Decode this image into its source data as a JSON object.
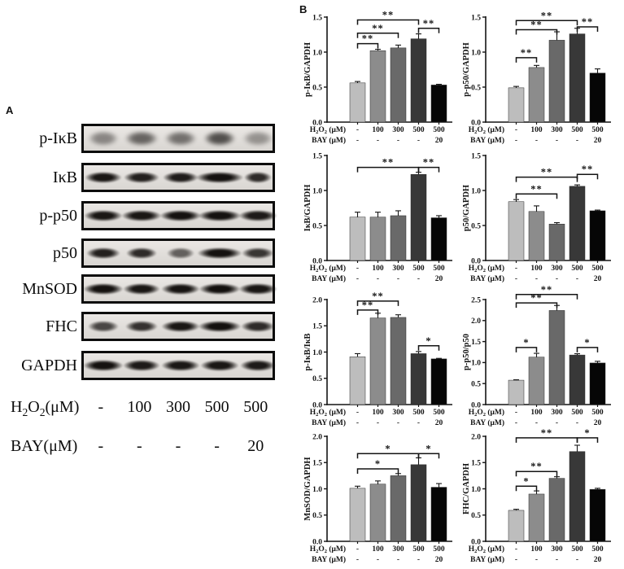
{
  "panel_a": {
    "label": "A",
    "blots": [
      {
        "target": "p-IκB",
        "band_intensities": [
          0.42,
          0.58,
          0.52,
          0.68,
          0.36
        ],
        "band_widths": [
          40,
          44,
          42,
          42,
          40
        ],
        "fuzzy": true
      },
      {
        "target": "IκB",
        "band_intensities": [
          0.95,
          0.9,
          0.92,
          0.97,
          0.85
        ],
        "band_widths": [
          48,
          46,
          46,
          62,
          36
        ],
        "fuzzy": false
      },
      {
        "target": "p-p50",
        "band_intensities": [
          0.95,
          0.95,
          0.97,
          0.97,
          0.93
        ],
        "band_widths": [
          50,
          52,
          54,
          56,
          50
        ],
        "fuzzy": false
      },
      {
        "target": "p50",
        "band_intensities": [
          0.9,
          0.85,
          0.6,
          0.97,
          0.8
        ],
        "band_widths": [
          44,
          40,
          36,
          58,
          42
        ],
        "fuzzy": false
      },
      {
        "target": "MnSOD",
        "band_intensities": [
          0.97,
          0.95,
          0.96,
          0.98,
          0.95
        ],
        "band_widths": [
          52,
          48,
          50,
          54,
          50
        ],
        "fuzzy": false
      },
      {
        "target": "FHC",
        "band_intensities": [
          0.72,
          0.82,
          0.95,
          0.98,
          0.85
        ],
        "band_widths": [
          40,
          42,
          50,
          56,
          44
        ],
        "fuzzy": false
      },
      {
        "target": "GAPDH",
        "band_intensities": [
          0.97,
          0.93,
          0.94,
          0.95,
          0.93
        ],
        "band_widths": [
          52,
          48,
          50,
          50,
          46
        ],
        "fuzzy": false
      }
    ],
    "h2o2_row": {
      "label": "H₂O₂(μM)",
      "values": [
        "-",
        "100",
        "300",
        "500",
        "500"
      ]
    },
    "bay_row": {
      "label": "BAY(μM)",
      "values": [
        "-",
        "-",
        "-",
        "-",
        "20"
      ]
    }
  },
  "panel_b": {
    "label": "B",
    "bar_colors": [
      "#bdbdbd",
      "#8c8c8c",
      "#696969",
      "#383838",
      "#060606"
    ],
    "x_axis_rows": {
      "h2o2_label": "H₂O₂ (μM)",
      "bay_label": "BAY (μM)"
    }
  },
  "chart_data": [
    {
      "type": "bar",
      "ylabel": "p-IκB/GAPDH",
      "ylim": [
        0,
        1.5
      ],
      "yticks": [
        0,
        0.5,
        1.0,
        1.5
      ],
      "h2o2": [
        "-",
        "100",
        "300",
        "500",
        "500"
      ],
      "bay": [
        "-",
        "-",
        "-",
        "-",
        "20"
      ],
      "values": [
        0.56,
        1.02,
        1.06,
        1.19,
        0.53
      ],
      "errors": [
        0.02,
        0.02,
        0.04,
        0.07,
        0.01
      ],
      "significance": [
        {
          "from": 0,
          "to": 1,
          "label": "**",
          "y": 1.12
        },
        {
          "from": 0,
          "to": 2,
          "label": "**",
          "y": 1.27
        },
        {
          "from": 0,
          "to": 3,
          "label": "**",
          "y": 1.46
        },
        {
          "from": 3,
          "to": 4,
          "label": "**",
          "y": 1.34
        }
      ]
    },
    {
      "type": "bar",
      "ylabel": "p-p50/GAPDH",
      "ylim": [
        0,
        1.5
      ],
      "yticks": [
        0,
        0.5,
        1.0,
        1.5
      ],
      "h2o2": [
        "-",
        "100",
        "300",
        "500",
        "500"
      ],
      "bay": [
        "-",
        "-",
        "-",
        "-",
        "20"
      ],
      "values": [
        0.49,
        0.78,
        1.17,
        1.26,
        0.7
      ],
      "errors": [
        0.02,
        0.03,
        0.12,
        0.08,
        0.06
      ],
      "significance": [
        {
          "from": 0,
          "to": 1,
          "label": "**",
          "y": 0.92
        },
        {
          "from": 0,
          "to": 2,
          "label": "**",
          "y": 1.32
        },
        {
          "from": 0,
          "to": 3,
          "label": "**",
          "y": 1.45
        },
        {
          "from": 3,
          "to": 4,
          "label": "**",
          "y": 1.36
        }
      ]
    },
    {
      "type": "bar",
      "ylabel": "IκB/GAPDH",
      "ylim": [
        0,
        1.5
      ],
      "yticks": [
        0,
        0.5,
        1.0,
        1.5
      ],
      "h2o2": [
        "-",
        "100",
        "300",
        "500",
        "500"
      ],
      "bay": [
        "-",
        "-",
        "-",
        "-",
        "20"
      ],
      "values": [
        0.62,
        0.62,
        0.64,
        1.23,
        0.61
      ],
      "errors": [
        0.07,
        0.07,
        0.07,
        0.03,
        0.03
      ],
      "significance": [
        {
          "from": 0,
          "to": 3,
          "label": "**",
          "y": 1.33
        },
        {
          "from": 3,
          "to": 4,
          "label": "**",
          "y": 1.33
        }
      ]
    },
    {
      "type": "bar",
      "ylabel": "p50/GAPDH",
      "ylim": [
        0,
        1.5
      ],
      "yticks": [
        0,
        0.5,
        1.0,
        1.5
      ],
      "h2o2": [
        "-",
        "100",
        "300",
        "500",
        "500"
      ],
      "bay": [
        "-",
        "-",
        "-",
        "-",
        "20"
      ],
      "values": [
        0.84,
        0.7,
        0.52,
        1.06,
        0.71
      ],
      "errors": [
        0.03,
        0.08,
        0.02,
        0.02,
        0.01
      ],
      "significance": [
        {
          "from": 0,
          "to": 2,
          "label": "**",
          "y": 0.95
        },
        {
          "from": 0,
          "to": 3,
          "label": "**",
          "y": 1.19
        },
        {
          "from": 3,
          "to": 4,
          "label": "**",
          "y": 1.23
        }
      ]
    },
    {
      "type": "bar",
      "ylabel": "p-IκB/IκB",
      "ylim": [
        0,
        2.0
      ],
      "yticks": [
        0,
        0.5,
        1.0,
        1.5,
        2.0
      ],
      "h2o2": [
        "-",
        "100",
        "300",
        "500",
        "500"
      ],
      "bay": [
        "-",
        "-",
        "-",
        "-",
        "20"
      ],
      "values": [
        0.91,
        1.65,
        1.66,
        0.97,
        0.87
      ],
      "errors": [
        0.06,
        0.09,
        0.05,
        0.04,
        0.01
      ],
      "significance": [
        {
          "from": 0,
          "to": 1,
          "label": "**",
          "y": 1.8
        },
        {
          "from": 0,
          "to": 2,
          "label": "**",
          "y": 1.97
        },
        {
          "from": 3,
          "to": 4,
          "label": "*",
          "y": 1.12
        }
      ]
    },
    {
      "type": "bar",
      "ylabel": "p-p50/p50",
      "ylim": [
        0,
        2.5
      ],
      "yticks": [
        0,
        0.5,
        1.0,
        1.5,
        2.0,
        2.5
      ],
      "h2o2": [
        "-",
        "100",
        "300",
        "500",
        "500"
      ],
      "bay": [
        "-",
        "-",
        "-",
        "-",
        "20"
      ],
      "values": [
        0.58,
        1.13,
        2.24,
        1.18,
        0.99
      ],
      "errors": [
        0.01,
        0.09,
        0.12,
        0.03,
        0.04
      ],
      "significance": [
        {
          "from": 0,
          "to": 1,
          "label": "*",
          "y": 1.36
        },
        {
          "from": 0,
          "to": 2,
          "label": "**",
          "y": 2.42
        },
        {
          "from": 0,
          "to": 3,
          "label": "**",
          "y": 2.62
        },
        {
          "from": 3,
          "to": 4,
          "label": "*",
          "y": 1.36
        }
      ]
    },
    {
      "type": "bar",
      "ylabel": "MnSOD/GAPDH",
      "ylim": [
        0,
        2.0
      ],
      "yticks": [
        0,
        0.5,
        1.0,
        1.5,
        2.0
      ],
      "h2o2": [
        "-",
        "100",
        "300",
        "500",
        "500"
      ],
      "bay": [
        "-",
        "-",
        "-",
        "-",
        "20"
      ],
      "values": [
        1.01,
        1.09,
        1.25,
        1.46,
        1.03
      ],
      "errors": [
        0.04,
        0.06,
        0.04,
        0.13,
        0.07
      ],
      "significance": [
        {
          "from": 0,
          "to": 2,
          "label": "*",
          "y": 1.38
        },
        {
          "from": 0,
          "to": 3,
          "label": "*",
          "y": 1.67
        },
        {
          "from": 3,
          "to": 4,
          "label": "*",
          "y": 1.67
        }
      ]
    },
    {
      "type": "bar",
      "ylabel": "FHC/GAPDH",
      "ylim": [
        0,
        2.0
      ],
      "yticks": [
        0,
        0.5,
        1.0,
        1.5,
        2.0
      ],
      "h2o2": [
        "-",
        "100",
        "300",
        "500",
        "500"
      ],
      "bay": [
        "-",
        "-",
        "-",
        "-",
        "20"
      ],
      "values": [
        0.59,
        0.9,
        1.2,
        1.71,
        0.99
      ],
      "errors": [
        0.02,
        0.06,
        0.03,
        0.12,
        0.02
      ],
      "significance": [
        {
          "from": 0,
          "to": 1,
          "label": "*",
          "y": 1.05
        },
        {
          "from": 0,
          "to": 2,
          "label": "**",
          "y": 1.33
        },
        {
          "from": 0,
          "to": 3,
          "label": "**",
          "y": 1.97
        },
        {
          "from": 3,
          "to": 4,
          "label": "*",
          "y": 1.97
        }
      ]
    }
  ]
}
